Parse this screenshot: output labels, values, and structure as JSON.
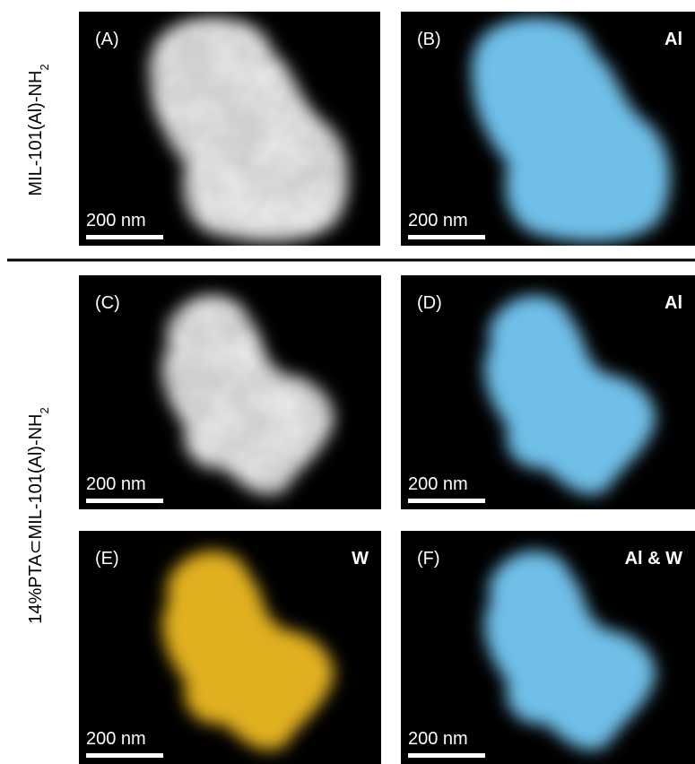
{
  "row_labels": [
    {
      "text": "MIL-101(Al)-NH",
      "subscript": "2"
    },
    {
      "text": "14%PTA⊂MIL-101(Al)-NH",
      "subscript": "2"
    }
  ],
  "panels": [
    {
      "label": "(A)",
      "scale_bar": "200 nm"
    },
    {
      "label": "(B)",
      "element": "Al",
      "scale_bar": "200 nm"
    },
    {
      "label": "(C)",
      "scale_bar": "200 nm"
    },
    {
      "label": "(D)",
      "element": "Al",
      "scale_bar": "200 nm"
    },
    {
      "label": "(E)",
      "element": "W",
      "scale_bar": "200 nm"
    },
    {
      "label": "(F)",
      "element": "Al & W",
      "scale_bar": "200 nm"
    }
  ]
}
